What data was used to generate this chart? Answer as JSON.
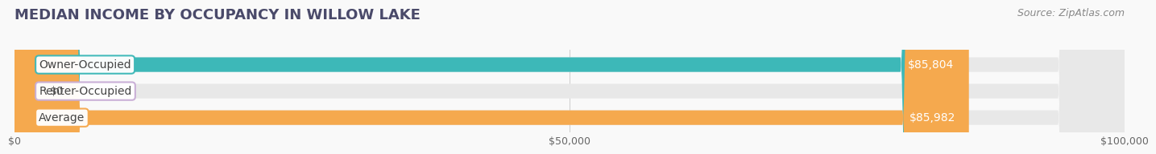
{
  "title": "MEDIAN INCOME BY OCCUPANCY IN WILLOW LAKE",
  "source": "Source: ZipAtlas.com",
  "categories": [
    "Owner-Occupied",
    "Renter-Occupied",
    "Average"
  ],
  "values": [
    85804,
    0,
    85982
  ],
  "bar_colors": [
    "#3db8b8",
    "#c9aed6",
    "#f5a94e"
  ],
  "label_texts": [
    "$85,804",
    "$0",
    "$85,982"
  ],
  "xlim": [
    0,
    100000
  ],
  "xticks": [
    0,
    50000,
    100000
  ],
  "xtick_labels": [
    "$0",
    "$50,000",
    "$100,000"
  ],
  "title_color": "#4a4a6a",
  "title_fontsize": 13,
  "source_color": "#888888",
  "source_fontsize": 9,
  "label_fontsize": 10,
  "category_fontsize": 10,
  "bar_height": 0.55,
  "background_color": "#f9f9f9"
}
